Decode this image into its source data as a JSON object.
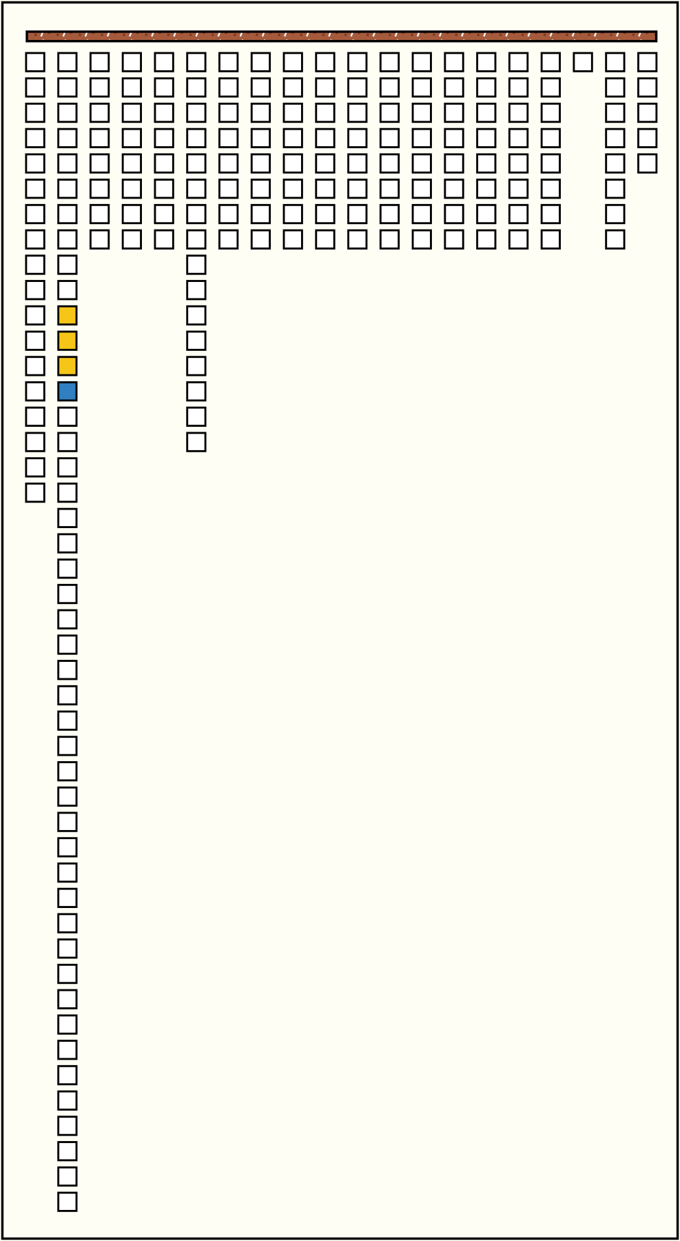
{
  "columns": [
    18,
    46,
    8,
    8,
    8,
    16,
    8,
    8,
    8,
    8,
    8,
    8,
    8,
    8,
    8,
    8,
    8,
    1,
    8,
    5
  ],
  "highlights": [
    {
      "column": 1,
      "row": 10,
      "color": "#f5c518"
    },
    {
      "column": 1,
      "row": 11,
      "color": "#f5c518"
    },
    {
      "column": 1,
      "row": 12,
      "color": "#f5c518"
    },
    {
      "column": 1,
      "row": 13,
      "color": "#2f7fc1"
    }
  ]
}
